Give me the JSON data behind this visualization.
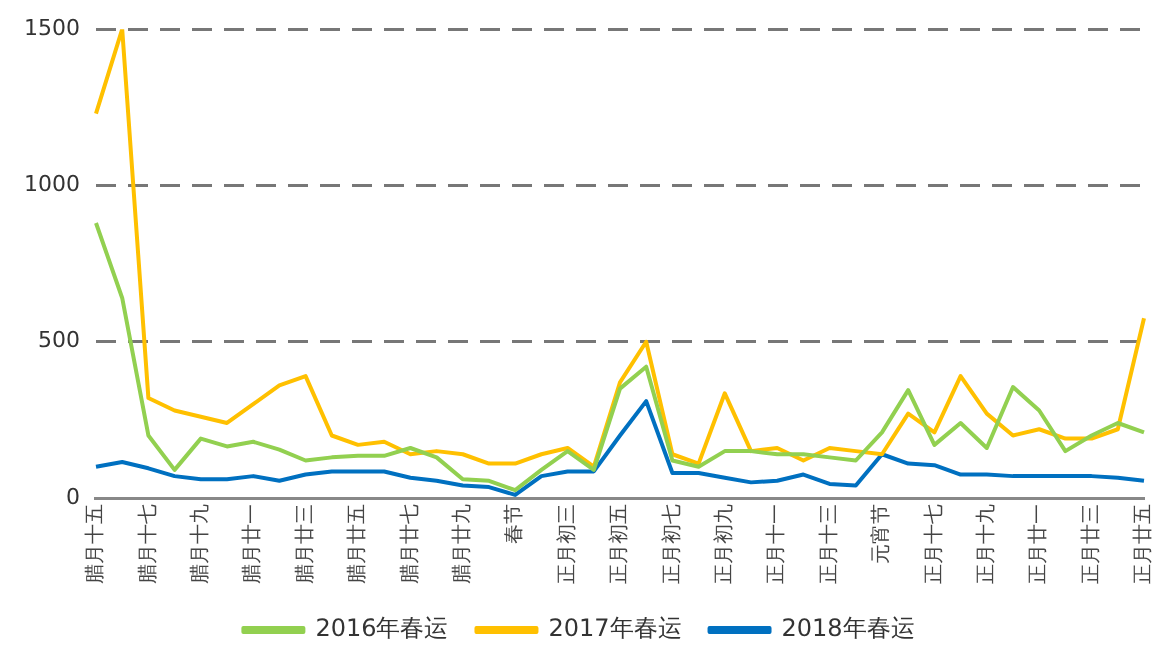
{
  "chart_data": {
    "type": "line",
    "categories": [
      "腊月十五",
      null,
      "腊月十七",
      null,
      "腊月十九",
      null,
      "腊月廿一",
      null,
      "腊月廿三",
      null,
      "腊月廿五",
      null,
      "腊月廿七",
      null,
      "腊月廿九",
      null,
      "春节",
      null,
      "正月初三",
      null,
      "正月初五",
      null,
      "正月初七",
      null,
      "正月初九",
      null,
      "正月十一",
      null,
      "正月十三",
      null,
      "元宵节",
      null,
      "正月十七",
      null,
      "正月十九",
      null,
      "正月廿一",
      null,
      "正月廿三",
      null,
      "正月廿五"
    ],
    "series": [
      {
        "name": "2016年春运",
        "color": "#92d050",
        "values": [
          880,
          640,
          200,
          90,
          190,
          165,
          180,
          155,
          120,
          130,
          135,
          135,
          160,
          130,
          60,
          55,
          25,
          90,
          150,
          90,
          350,
          420,
          120,
          100,
          150,
          150,
          140,
          140,
          130,
          120,
          210,
          345,
          170,
          240,
          160,
          355,
          280,
          150,
          200,
          240,
          210
        ]
      },
      {
        "name": "2017年春运",
        "color": "#ffc000",
        "values": [
          1230,
          1500,
          320,
          280,
          260,
          240,
          300,
          360,
          390,
          200,
          170,
          180,
          140,
          150,
          140,
          110,
          110,
          140,
          160,
          100,
          370,
          500,
          140,
          110,
          335,
          150,
          160,
          120,
          160,
          150,
          140,
          270,
          210,
          390,
          270,
          200,
          220,
          190,
          190,
          220,
          575
        ]
      },
      {
        "name": "2018年春运",
        "color": "#0070c0",
        "values": [
          100,
          115,
          95,
          70,
          60,
          60,
          70,
          55,
          75,
          85,
          85,
          85,
          65,
          55,
          40,
          35,
          10,
          70,
          85,
          85,
          200,
          310,
          80,
          80,
          65,
          50,
          55,
          75,
          45,
          40,
          140,
          110,
          105,
          75,
          75,
          70,
          70,
          70,
          70,
          65,
          55
        ]
      }
    ],
    "ylim": [
      0,
      1500
    ],
    "yticks": [
      0,
      500,
      1000,
      1500
    ],
    "grid": "y",
    "legend": "bottom",
    "marker": "none",
    "line_style": "solid"
  }
}
